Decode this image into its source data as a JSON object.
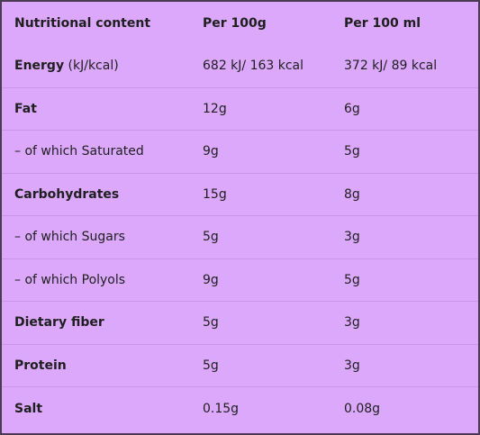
{
  "header": {
    "col_label": "Nutritional content",
    "col_per_100g": "Per 100g",
    "col_per_100ml": "Per 100 ml"
  },
  "rows": [
    {
      "label": "Energy",
      "unit": " (kJ/kcal)",
      "per_100g": "682 kJ/ 163 kcal",
      "per_100ml": "372 kJ/ 89 kcal",
      "bold": true
    },
    {
      "label": "Fat",
      "unit": "",
      "per_100g": "12g",
      "per_100ml": "6g",
      "bold": true
    },
    {
      "label": "– of which Saturated",
      "unit": "",
      "per_100g": "9g",
      "per_100ml": "5g",
      "bold": false
    },
    {
      "label": "Carbohydrates",
      "unit": "",
      "per_100g": "15g",
      "per_100ml": "8g",
      "bold": true
    },
    {
      "label": "– of which Sugars",
      "unit": "",
      "per_100g": "5g",
      "per_100ml": "3g",
      "bold": false
    },
    {
      "label": "– of which Polyols",
      "unit": "",
      "per_100g": "9g",
      "per_100ml": "5g",
      "bold": false
    },
    {
      "label": "Dietary fiber",
      "unit": "",
      "per_100g": "5g",
      "per_100ml": "3g",
      "bold": true
    },
    {
      "label": "Protein",
      "unit": "",
      "per_100g": "5g",
      "per_100ml": "3g",
      "bold": true
    },
    {
      "label": "Salt",
      "unit": "",
      "per_100g": "0.15g",
      "per_100ml": "0.08g",
      "bold": true
    }
  ],
  "colors": {
    "background": "#dba8fb",
    "border": "#4a3a52",
    "divider": "#c995ea"
  }
}
